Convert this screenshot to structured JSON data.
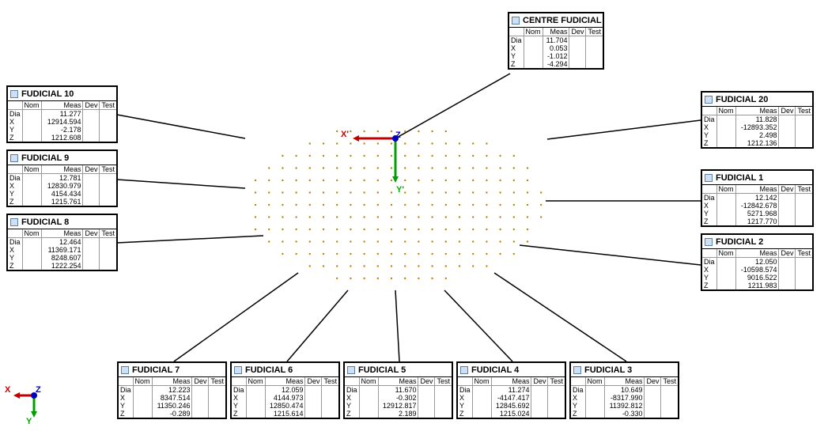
{
  "boxes": [
    {
      "title": "CENTRE FUDICIAL",
      "columns": [
        "Nom",
        "Meas",
        "Dev",
        "Test"
      ],
      "rows": [
        {
          "label": "Dia",
          "meas": "11.704"
        },
        {
          "label": "X",
          "meas": "0.053"
        },
        {
          "label": "Y",
          "meas": "-1.012"
        },
        {
          "label": "Z",
          "meas": "-4.294"
        }
      ]
    },
    {
      "title": "FUDICIAL 10",
      "columns": [
        "Nom",
        "Meas",
        "Dev",
        "Test"
      ],
      "rows": [
        {
          "label": "Dia",
          "meas": "11.277"
        },
        {
          "label": "X",
          "meas": "12914.594"
        },
        {
          "label": "Y",
          "meas": "-2.178"
        },
        {
          "label": "Z",
          "meas": "1212.608"
        }
      ]
    },
    {
      "title": "FUDICIAL 9",
      "columns": [
        "Nom",
        "Meas",
        "Dev",
        "Test"
      ],
      "rows": [
        {
          "label": "Dia",
          "meas": "12.781"
        },
        {
          "label": "X",
          "meas": "12830.979"
        },
        {
          "label": "Y",
          "meas": "4154.434"
        },
        {
          "label": "Z",
          "meas": "1215.761"
        }
      ]
    },
    {
      "title": "FUDICIAL 8",
      "columns": [
        "Nom",
        "Meas",
        "Dev",
        "Test"
      ],
      "rows": [
        {
          "label": "Dia",
          "meas": "12.464"
        },
        {
          "label": "X",
          "meas": "11369.171"
        },
        {
          "label": "Y",
          "meas": "8248.607"
        },
        {
          "label": "Z",
          "meas": "1222.254"
        }
      ]
    },
    {
      "title": "FUDICIAL 20",
      "columns": [
        "Nom",
        "Meas",
        "Dev",
        "Test"
      ],
      "rows": [
        {
          "label": "Dia",
          "meas": "11.828"
        },
        {
          "label": "X",
          "meas": "-12893.352"
        },
        {
          "label": "Y",
          "meas": "2.498"
        },
        {
          "label": "Z",
          "meas": "1212.136"
        }
      ]
    },
    {
      "title": "FUDICIAL 1",
      "columns": [
        "Nom",
        "Meas",
        "Dev",
        "Test"
      ],
      "rows": [
        {
          "label": "Dia",
          "meas": "12.142"
        },
        {
          "label": "X",
          "meas": "-12842.678"
        },
        {
          "label": "Y",
          "meas": "5271.968"
        },
        {
          "label": "Z",
          "meas": "1217.770"
        }
      ]
    },
    {
      "title": "FUDICIAL 2",
      "columns": [
        "Nom",
        "Meas",
        "Dev",
        "Test"
      ],
      "rows": [
        {
          "label": "Dia",
          "meas": "12.050"
        },
        {
          "label": "X",
          "meas": "-10598.574"
        },
        {
          "label": "Y",
          "meas": "9016.522"
        },
        {
          "label": "Z",
          "meas": "1211.983"
        }
      ]
    },
    {
      "title": "FUDICIAL 7",
      "columns": [
        "Nom",
        "Meas",
        "Dev",
        "Test"
      ],
      "rows": [
        {
          "label": "Dia",
          "meas": "12.223"
        },
        {
          "label": "X",
          "meas": "8347.514"
        },
        {
          "label": "Y",
          "meas": "11350.246"
        },
        {
          "label": "Z",
          "meas": "-0.289"
        }
      ]
    },
    {
      "title": "FUDICIAL 6",
      "columns": [
        "Nom",
        "Meas",
        "Dev",
        "Test"
      ],
      "rows": [
        {
          "label": "Dia",
          "meas": "12.059"
        },
        {
          "label": "X",
          "meas": "4144.973"
        },
        {
          "label": "Y",
          "meas": "12850.474"
        },
        {
          "label": "Z",
          "meas": "1215.614"
        }
      ]
    },
    {
      "title": "FUDICIAL 5",
      "columns": [
        "Nom",
        "Meas",
        "Dev",
        "Test"
      ],
      "rows": [
        {
          "label": "Dia",
          "meas": "11.670"
        },
        {
          "label": "X",
          "meas": "-0.302"
        },
        {
          "label": "Y",
          "meas": "12912.817"
        },
        {
          "label": "Z",
          "meas": "2.189"
        }
      ]
    },
    {
      "title": "FUDICIAL 4",
      "columns": [
        "Nom",
        "Meas",
        "Dev",
        "Test"
      ],
      "rows": [
        {
          "label": "Dia",
          "meas": "11.274"
        },
        {
          "label": "X",
          "meas": "-4147.417"
        },
        {
          "label": "Y",
          "meas": "12845.692"
        },
        {
          "label": "Z",
          "meas": "1215.024"
        }
      ]
    },
    {
      "title": "FUDICIAL 3",
      "columns": [
        "Nom",
        "Meas",
        "Dev",
        "Test"
      ],
      "rows": [
        {
          "label": "Dia",
          "meas": "10.649"
        },
        {
          "label": "X",
          "meas": "-8317.990"
        },
        {
          "label": "Y",
          "meas": "11392.812"
        },
        {
          "label": "Z",
          "meas": "-0.330"
        }
      ]
    }
  ],
  "part_axes": {
    "x": "X'",
    "y": "Y'",
    "z": "Z"
  },
  "machine_axes": {
    "x": "X",
    "y": "Y",
    "z": "Z"
  }
}
